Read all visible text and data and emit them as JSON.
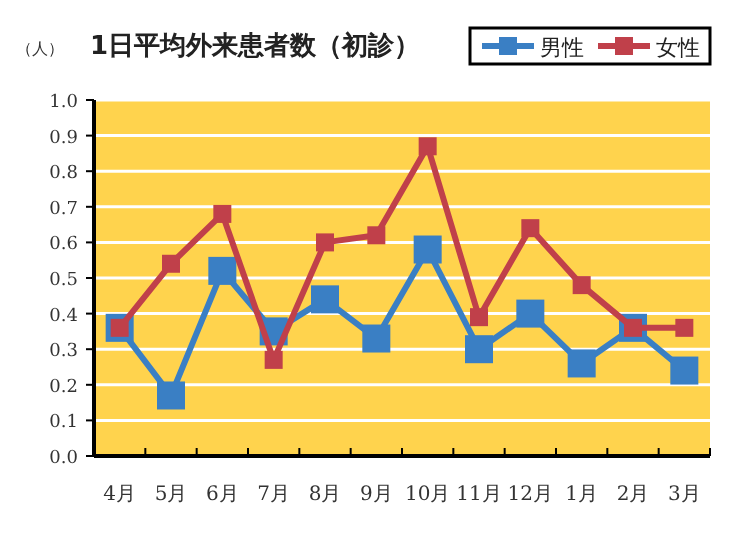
{
  "chart_data": {
    "type": "line",
    "title": "1日平均外来患者数（初診）",
    "ylabel": "（人）",
    "categories": [
      "4月",
      "5月",
      "6月",
      "7月",
      "8月",
      "9月",
      "10月",
      "11月",
      "12月",
      "1月",
      "2月",
      "3月"
    ],
    "series": [
      {
        "name": "男性",
        "color": "#3a7fc4",
        "values": [
          0.36,
          0.17,
          0.52,
          0.35,
          0.44,
          0.33,
          0.58,
          0.3,
          0.4,
          0.26,
          0.36,
          0.24
        ]
      },
      {
        "name": "女性",
        "color": "#c0404a",
        "values": [
          0.36,
          0.54,
          0.68,
          0.27,
          0.6,
          0.62,
          0.87,
          0.39,
          0.64,
          0.48,
          0.36,
          0.36
        ]
      }
    ],
    "ylim": [
      0,
      1
    ],
    "yticks": [
      {
        "value": 0,
        "label": "0.0"
      },
      {
        "value": 0.1,
        "label": "0.1"
      },
      {
        "value": 0.2,
        "label": "0.2"
      },
      {
        "value": 0.3,
        "label": "0.3"
      },
      {
        "value": 0.4,
        "label": "0.4"
      },
      {
        "value": 0.5,
        "label": "0.5"
      },
      {
        "value": 0.6,
        "label": "0.6"
      },
      {
        "value": 0.7,
        "label": "0.7"
      },
      {
        "value": 0.8,
        "label": "0.8"
      },
      {
        "value": 0.9,
        "label": "0.9"
      },
      {
        "value": 1,
        "label": "1.0"
      }
    ],
    "grid": "y",
    "legend": "top right",
    "marker": "square",
    "line_style": "solid"
  }
}
